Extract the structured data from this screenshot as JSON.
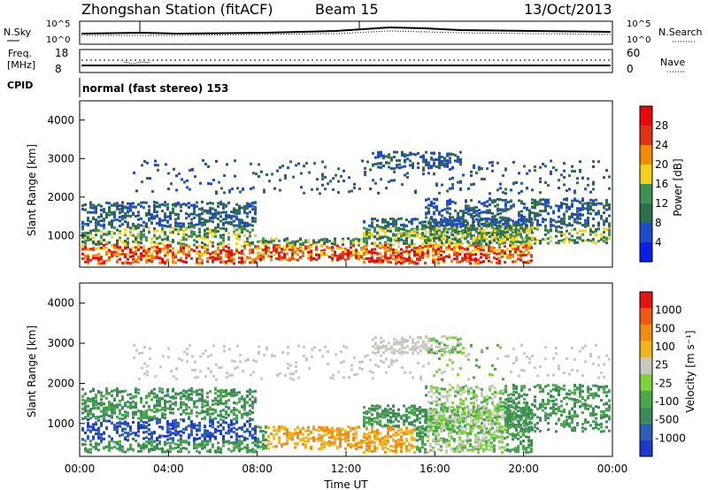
{
  "header": {
    "title": "Zhongshan Station (fitACF)",
    "beam": "Beam 15",
    "date": "13/Oct/2013"
  },
  "noise_panel": {
    "left_label": "N.Sky",
    "left_ticks": [
      "10^5",
      "10^0"
    ],
    "right_ticks": [
      "10^5",
      "10^0"
    ],
    "right_label": "N.Search"
  },
  "freq_panel": {
    "left_label_1": "Freq.",
    "left_label_2": "[MHz]",
    "left_ticks": [
      "18",
      "8"
    ],
    "right_ticks": [
      "60",
      "0"
    ],
    "right_label": "Nave"
  },
  "cpid_panel": {
    "label": "CPID",
    "text": "normal (fast stereo) 153"
  },
  "chart_data": [
    {
      "type": "heatmap",
      "name": "power",
      "ylabel": "Slant Range [km]",
      "yticks": [
        "4000",
        "3000",
        "2000",
        "1000"
      ],
      "colorbar_label": "Power [dB]",
      "colorbar_ticks": [
        "28",
        "24",
        "20",
        "16",
        "12",
        "8",
        "4"
      ],
      "colors": [
        "#0a1ee6",
        "#1e4bc8",
        "#2f6e4c",
        "#3e9155",
        "#f0d21e",
        "#f08c0a",
        "#e03214",
        "#e60a0a"
      ]
    },
    {
      "type": "heatmap",
      "name": "velocity",
      "ylabel": "Slant Range [km]",
      "yticks": [
        "4000",
        "3000",
        "2000",
        "1000"
      ],
      "colorbar_label": "Velocity [m s⁻¹]",
      "colorbar_ticks": [
        "1000",
        "500",
        "100",
        "25",
        "-25",
        "-100",
        "-500",
        "-1000"
      ],
      "colors": [
        "#1a3cc8",
        "#2f5fb4",
        "#3a8a5a",
        "#4aa84a",
        "#7ed23c",
        "#c8c8c0",
        "#f0b41e",
        "#f08c14",
        "#f05a14",
        "#e61414"
      ]
    }
  ],
  "xaxis": {
    "ticks": [
      "00:00",
      "04:00",
      "08:00",
      "12:00",
      "16:00",
      "20:00",
      "00:00"
    ],
    "label": "Time UT"
  }
}
